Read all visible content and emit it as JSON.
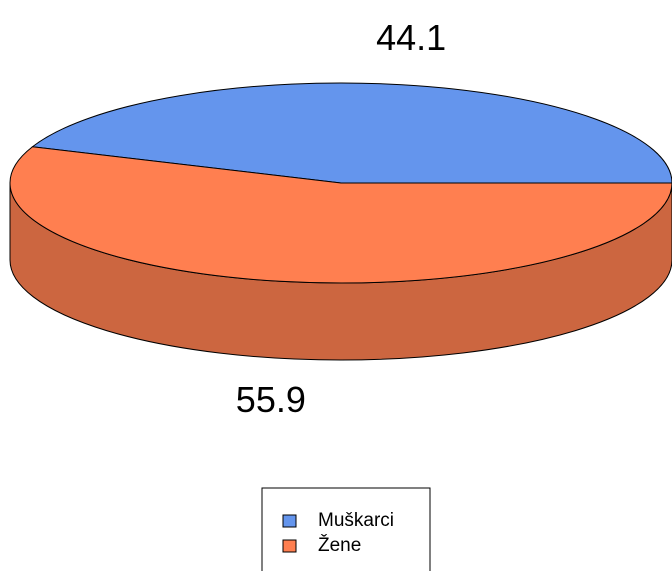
{
  "chart_data": {
    "type": "pie",
    "categories": [
      "Muškarci",
      "Žene"
    ],
    "values": [
      44.1,
      55.9
    ],
    "colors": [
      "#6495ed",
      "#ff7f50"
    ],
    "legend": "bottom"
  }
}
